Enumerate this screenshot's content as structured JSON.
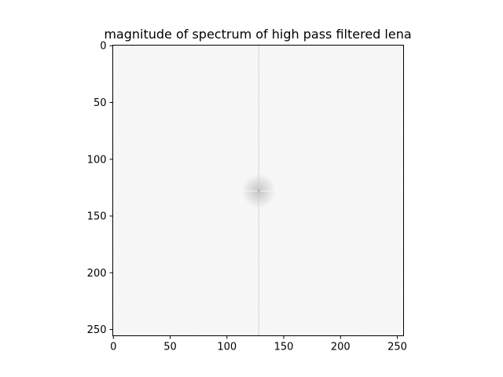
{
  "chart_data": {
    "type": "heatmap",
    "title": "magnitude of spectrum of high pass filtered lena",
    "xlabel": "",
    "ylabel": "",
    "image_size": [
      256,
      256
    ],
    "xlim": [
      -0.5,
      255.5
    ],
    "ylim": [
      255.5,
      -0.5
    ],
    "x_ticks": [
      0,
      50,
      100,
      150,
      200,
      250
    ],
    "y_ticks": [
      0,
      50,
      100,
      150,
      200,
      250
    ],
    "x_tick_labels": [
      "0",
      "50",
      "100",
      "150",
      "200",
      "250"
    ],
    "y_tick_labels": [
      "0",
      "50",
      "100",
      "150",
      "200",
      "250"
    ],
    "colormap": "gray_r",
    "grid": false,
    "features": [
      {
        "name": "dc-point",
        "x": 128,
        "y": 128,
        "intensity": "black"
      },
      {
        "name": "vertical-line",
        "x": 128
      },
      {
        "name": "horizontal-line",
        "y": 128
      }
    ],
    "colors": {
      "background_noise": "#efefef",
      "center_point": "#111111",
      "axes_edge": "#000000"
    }
  }
}
